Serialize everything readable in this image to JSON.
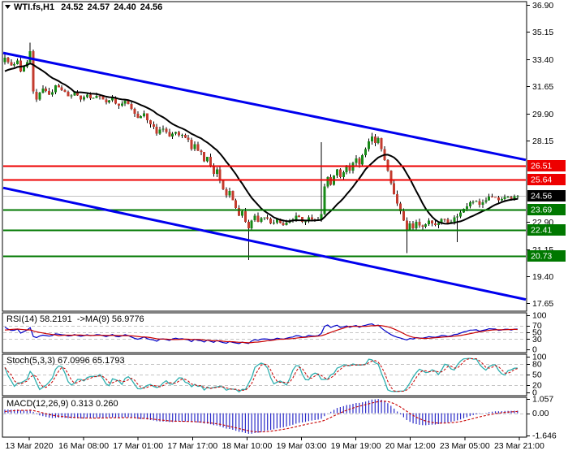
{
  "header": {
    "symbol_timeframe": "WTI.fs,H1",
    "open": "24.52",
    "high": "24.57",
    "low": "24.40",
    "close": "24.56"
  },
  "chart_data": {
    "type": "candlestick",
    "symbol": "WTI.fs",
    "timeframe": "H1",
    "last_ohlc": [
      24.52,
      24.57,
      24.4,
      24.56
    ],
    "y_range": [
      17.2,
      37.05
    ],
    "price_axis_ticks": [
      "36.90",
      "35.15",
      "33.40",
      "31.65",
      "29.90",
      "28.15",
      "22.90",
      "21.15",
      "19.40",
      "17.65"
    ],
    "x_labels": [
      "13 Mar 2020",
      "16 Mar 08:00",
      "17 Mar 01:00",
      "17 Mar 17:00",
      "18 Mar 10:00",
      "19 Mar 03:00",
      "19 Mar 19:00",
      "20 Mar 12:00",
      "23 Mar 05:00",
      "23 Mar 21:00"
    ],
    "levels": [
      {
        "price": 26.51,
        "label": "26.51",
        "kind": "resistance",
        "color": "#EE0000"
      },
      {
        "price": 25.64,
        "label": "25.64",
        "kind": "resistance",
        "color": "#EE0000"
      },
      {
        "price": 23.69,
        "label": "23.69",
        "kind": "support",
        "color": "#007800"
      },
      {
        "price": 22.41,
        "label": "22.41",
        "kind": "support",
        "color": "#007800"
      },
      {
        "price": 20.73,
        "label": "20.73",
        "kind": "support",
        "color": "#007800"
      }
    ],
    "current_price": {
      "price": 24.56,
      "label": "24.56",
      "line_color": "#C0C0C0",
      "badge_color": "#000000"
    },
    "trend_channel": {
      "color": "#0000EE",
      "upper_prices_at_edges": [
        33.8,
        26.9
      ],
      "lower_prices_at_edges": [
        25.1,
        17.9
      ]
    },
    "moving_average": {
      "period": 14,
      "color": "#000000"
    },
    "candles": {
      "count": 163,
      "open_first": 33.2,
      "wiggle": 0.3,
      "seed": 20200323,
      "bull_color": "#178A17",
      "bear_color": "#C33B2E",
      "wick_color": "#000000",
      "pre_closes": [
        32.4,
        32.1,
        32.3,
        32.0,
        32.2,
        31.9,
        32.1,
        31.8,
        32.0,
        32.2,
        31.9,
        32.1,
        32.3,
        32.0,
        32.2,
        32.4,
        32.1,
        32.3,
        32.5,
        32.2,
        32.4,
        32.6,
        32.8,
        33.0,
        33.2,
        33.4
      ],
      "close_keypoints": [
        [
          0,
          33.5
        ],
        [
          2,
          33.0
        ],
        [
          4,
          33.3
        ],
        [
          5,
          32.6
        ],
        [
          7,
          33.2
        ],
        [
          8,
          33.9
        ],
        [
          9,
          31.3
        ],
        [
          10,
          30.8
        ],
        [
          12,
          31.5
        ],
        [
          14,
          31.1
        ],
        [
          16,
          31.7
        ],
        [
          18,
          31.4
        ],
        [
          20,
          31.0
        ],
        [
          22,
          31.3
        ],
        [
          24,
          30.8
        ],
        [
          26,
          31.1
        ],
        [
          28,
          30.9
        ],
        [
          30,
          31.0
        ],
        [
          32,
          30.6
        ],
        [
          34,
          30.9
        ],
        [
          36,
          30.4
        ],
        [
          38,
          30.7
        ],
        [
          40,
          30.2
        ],
        [
          42,
          29.6
        ],
        [
          44,
          29.9
        ],
        [
          46,
          29.2
        ],
        [
          48,
          28.6
        ],
        [
          50,
          28.9
        ],
        [
          52,
          28.4
        ],
        [
          54,
          28.7
        ],
        [
          56,
          28.5
        ],
        [
          58,
          28.2
        ],
        [
          59,
          27.6
        ],
        [
          60,
          27.9
        ],
        [
          62,
          27.4
        ],
        [
          63,
          26.8
        ],
        [
          64,
          27.1
        ],
        [
          65,
          26.5
        ],
        [
          66,
          26.0
        ],
        [
          67,
          26.3
        ],
        [
          68,
          25.6
        ],
        [
          69,
          25.0
        ],
        [
          70,
          24.6
        ],
        [
          71,
          24.9
        ],
        [
          72,
          24.3
        ],
        [
          73,
          23.8
        ],
        [
          74,
          23.3
        ],
        [
          75,
          23.6
        ],
        [
          76,
          22.9
        ],
        [
          77,
          22.5
        ],
        [
          78,
          23.0
        ],
        [
          79,
          23.3
        ],
        [
          80,
          22.9
        ],
        [
          82,
          23.2
        ],
        [
          84,
          22.8
        ],
        [
          86,
          23.1
        ],
        [
          88,
          22.7
        ],
        [
          90,
          23.0
        ],
        [
          92,
          23.3
        ],
        [
          94,
          22.9
        ],
        [
          96,
          23.2
        ],
        [
          98,
          23.0
        ],
        [
          100,
          23.4
        ],
        [
          101,
          25.2
        ],
        [
          102,
          25.8
        ],
        [
          103,
          25.3
        ],
        [
          104,
          25.9
        ],
        [
          105,
          26.3
        ],
        [
          106,
          25.8
        ],
        [
          107,
          26.1
        ],
        [
          108,
          26.5
        ],
        [
          109,
          26.2
        ],
        [
          110,
          26.7
        ],
        [
          111,
          27.0
        ],
        [
          112,
          26.6
        ],
        [
          113,
          27.2
        ],
        [
          114,
          27.6
        ],
        [
          115,
          28.1
        ],
        [
          116,
          28.4
        ],
        [
          117,
          28.0
        ],
        [
          118,
          28.3
        ],
        [
          119,
          27.6
        ],
        [
          120,
          26.9
        ],
        [
          121,
          26.2
        ],
        [
          122,
          25.4
        ],
        [
          123,
          24.7
        ],
        [
          124,
          24.1
        ],
        [
          125,
          23.6
        ],
        [
          126,
          23.0
        ],
        [
          127,
          22.4
        ],
        [
          128,
          22.8
        ],
        [
          129,
          22.5
        ],
        [
          130,
          22.9
        ],
        [
          132,
          22.6
        ],
        [
          134,
          23.0
        ],
        [
          136,
          22.7
        ],
        [
          138,
          23.1
        ],
        [
          140,
          22.8
        ],
        [
          142,
          23.2
        ],
        [
          144,
          23.5
        ],
        [
          146,
          23.9
        ],
        [
          148,
          24.2
        ],
        [
          150,
          24.0
        ],
        [
          152,
          24.3
        ],
        [
          154,
          24.5
        ],
        [
          156,
          24.3
        ],
        [
          158,
          24.5
        ],
        [
          160,
          24.4
        ],
        [
          162,
          24.56
        ]
      ],
      "overrides": {
        "8": {
          "high": 34.45
        },
        "77": {
          "low": 20.45
        },
        "100": {
          "high": 28.05
        },
        "116": {
          "high": 28.65
        },
        "127": {
          "low": 20.9
        },
        "143": {
          "low": 21.6
        }
      }
    },
    "indicators": [
      {
        "id": "rsi",
        "label": "RSI(14) 58.2191  ->MA(9) 56.9776",
        "period": 14,
        "ma_period": 9,
        "values_display": [
          "58.2191",
          "56.9776"
        ],
        "scale_ticks": [
          "100",
          "70",
          "50",
          "30",
          "0"
        ],
        "scale_values": [
          100,
          70,
          50,
          30,
          0
        ],
        "gridlines": [
          70,
          50,
          30
        ],
        "main_color": "#0000C8",
        "signal_color": "#C80000"
      },
      {
        "id": "stoch",
        "label": "Stoch(5,3,3) 67.0996 65.1793",
        "k_period": 5,
        "d_period": 3,
        "slowing": 3,
        "values_display": [
          "67.0996",
          "65.1793"
        ],
        "scale_ticks": [
          "100",
          "80",
          "50",
          "20",
          "0"
        ],
        "scale_values": [
          100,
          80,
          50,
          20,
          0
        ],
        "gridlines": [
          80,
          50,
          20
        ],
        "main_color": "#2FAFAF",
        "signal_color": "#C80000"
      },
      {
        "id": "macd",
        "label": "MACD(12,26,9) 0.313 0.260",
        "fast": 12,
        "slow": 26,
        "signal": 9,
        "values_display": [
          "0.313",
          "0.260"
        ],
        "scale_ticks": [
          "1.057",
          "0.00",
          "-1.646"
        ],
        "scale_values": [
          1.057,
          0,
          -1.646
        ],
        "gridlines": [
          0
        ],
        "main_color": "#2A2AC8",
        "signal_color": "#C80000"
      }
    ]
  }
}
